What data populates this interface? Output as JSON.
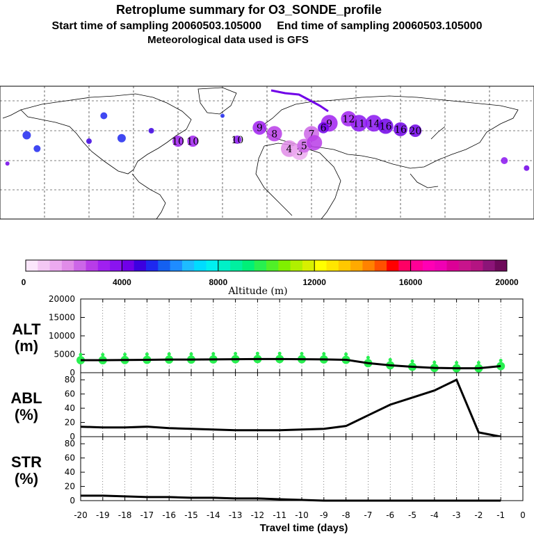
{
  "header": {
    "title": "Retroplume summary for O3_SONDE_profile",
    "sampling_line": "Start time of sampling 20060503.105000     End time of sampling 20060503.105000",
    "met_line": "Meteorological data used is GFS"
  },
  "colorbar": {
    "colors": [
      "#fbe6fb",
      "#f4c8f4",
      "#ecaaf0",
      "#e08ce8",
      "#cc66e8",
      "#b83ce8",
      "#a020f0",
      "#8a14f0",
      "#7000e8",
      "#3c00e0",
      "#1e28f0",
      "#1460f0",
      "#1e8cff",
      "#1ebcff",
      "#00dcff",
      "#00f0f0",
      "#00f0c8",
      "#00f0a0",
      "#00f078",
      "#28f050",
      "#50f028",
      "#80f000",
      "#b0f000",
      "#d8f000",
      "#ffff00",
      "#ffe600",
      "#ffc800",
      "#ffaa00",
      "#ff8200",
      "#ff5000",
      "#ff0000",
      "#ff0064",
      "#ff0096",
      "#ff00b4",
      "#f000b4",
      "#dc0096",
      "#c8148c",
      "#b41482",
      "#8c1478",
      "#6e0a5a"
    ],
    "labels": [
      "0",
      "4000",
      "8000",
      "12000",
      "16000",
      "20000"
    ],
    "axis_label": "Altitude (m)"
  },
  "map_plumes": [
    {
      "lon": 62,
      "lat": 55,
      "size": 12,
      "color": "#8a14f0",
      "label": "11"
    },
    {
      "lon": 72,
      "lat": 55,
      "size": 12,
      "color": "#8a14f0",
      "label": "14"
    },
    {
      "lon": 80,
      "lat": 53,
      "size": 11,
      "color": "#7000e8",
      "label": "16"
    },
    {
      "lon": 90,
      "lat": 51,
      "size": 10,
      "color": "#7000e8",
      "label": "16"
    },
    {
      "lon": 100,
      "lat": 50,
      "size": 9,
      "color": "#7000e8",
      "label": "20"
    },
    {
      "lon": 42,
      "lat": 55,
      "size": 12,
      "color": "#a020f0",
      "label": "9"
    },
    {
      "lon": 55,
      "lat": 58,
      "size": 11,
      "color": "#a020f0",
      "label": "12"
    },
    {
      "lon": 30,
      "lat": 48,
      "size": 11,
      "color": "#cc66e8",
      "label": "7"
    },
    {
      "lon": 5,
      "lat": 48,
      "size": 11,
      "color": "#b83ce8",
      "label": "8"
    },
    {
      "lon": -5,
      "lat": 52,
      "size": 10,
      "color": "#a020f0",
      "label": "9"
    },
    {
      "lon": 15,
      "lat": 38,
      "size": 12,
      "color": "#e08ce8",
      "label": "4"
    },
    {
      "lon": 22,
      "lat": 36,
      "size": 12,
      "color": "#ecaaf0",
      "label": "3"
    },
    {
      "lon": 25,
      "lat": 40,
      "size": 10,
      "color": "#cc66e8",
      "label": "5"
    },
    {
      "lon": 32,
      "lat": 42,
      "size": 11,
      "color": "#b83ce8",
      "label": ""
    },
    {
      "lon": 38,
      "lat": 52,
      "size": 8,
      "color": "#7000e8",
      "label": "6"
    },
    {
      "lon": -60,
      "lat": 43,
      "size": 8,
      "color": "#a020f0",
      "label": "10"
    },
    {
      "lon": -50,
      "lat": 43,
      "size": 8,
      "color": "#a020f0",
      "label": "10"
    },
    {
      "lon": -20,
      "lat": 44,
      "size": 6,
      "color": "#8a14f0",
      "label": "10"
    },
    {
      "lon": -162,
      "lat": 47,
      "size": 6,
      "color": "#1e28f0",
      "label": ""
    },
    {
      "lon": -155,
      "lat": 38,
      "size": 5,
      "color": "#1e28f0",
      "label": ""
    },
    {
      "lon": -110,
      "lat": 60,
      "size": 5,
      "color": "#1e28f0",
      "label": ""
    },
    {
      "lon": -98,
      "lat": 45,
      "size": 6,
      "color": "#1e28f0",
      "label": ""
    },
    {
      "lon": -120,
      "lat": 43,
      "size": 4,
      "color": "#3c00e0",
      "label": ""
    },
    {
      "lon": -78,
      "lat": 50,
      "size": 4,
      "color": "#3c00e0",
      "label": ""
    },
    {
      "lon": -175,
      "lat": 28,
      "size": 3,
      "color": "#7000e8",
      "label": ""
    },
    {
      "lon": 160,
      "lat": 30,
      "size": 5,
      "color": "#8a14f0",
      "label": ""
    },
    {
      "lon": 175,
      "lat": 25,
      "size": 4,
      "color": "#7000e8",
      "label": ""
    },
    {
      "lon": -30,
      "lat": 60,
      "size": 3,
      "color": "#1e28f0",
      "label": ""
    }
  ],
  "chart_data": [
    {
      "type": "line",
      "title": "ALT (m)",
      "panel_label_line1": "ALT",
      "panel_label_line2": "(m)",
      "x": [
        -20,
        -19,
        -18,
        -17,
        -16,
        -15,
        -14,
        -13,
        -12,
        -11,
        -10,
        -9,
        -8,
        -7,
        -6,
        -5,
        -4,
        -3,
        -2,
        -1
      ],
      "values": [
        3400,
        3400,
        3450,
        3500,
        3550,
        3550,
        3600,
        3650,
        3700,
        3700,
        3650,
        3600,
        3500,
        2600,
        2000,
        1600,
        1300,
        1200,
        1200,
        1800
      ],
      "scatter_color": "#28f050",
      "ylim": [
        0,
        20000
      ],
      "yticks": [
        "0",
        "5000",
        "10000",
        "15000",
        "20000"
      ]
    },
    {
      "type": "line",
      "title": "ABL (%)",
      "panel_label_line1": "ABL",
      "panel_label_line2": "(%)",
      "x": [
        -20,
        -19,
        -18,
        -17,
        -16,
        -15,
        -14,
        -13,
        -12,
        -11,
        -10,
        -9,
        -8,
        -7,
        -6,
        -5,
        -4,
        -3,
        -2,
        -1
      ],
      "values": [
        14,
        13,
        13,
        14,
        12,
        11,
        10,
        9,
        9,
        9,
        10,
        11,
        15,
        30,
        45,
        55,
        65,
        80,
        6,
        0
      ],
      "ylim": [
        0,
        90
      ],
      "yticks": [
        "0",
        "20",
        "40",
        "60",
        "80"
      ]
    },
    {
      "type": "line",
      "title": "STR (%)",
      "panel_label_line1": "STR",
      "panel_label_line2": "(%)",
      "x": [
        -20,
        -19,
        -18,
        -17,
        -16,
        -15,
        -14,
        -13,
        -12,
        -11,
        -10,
        -9,
        -8,
        -7,
        -6,
        -5,
        -4,
        -3,
        -2,
        -1
      ],
      "values": [
        7,
        7,
        6,
        5,
        5,
        4,
        4,
        3,
        3,
        2,
        1,
        0,
        0,
        0,
        0,
        0,
        0,
        0,
        0,
        0
      ],
      "ylim": [
        0,
        90
      ],
      "yticks": [
        "0",
        "20",
        "40",
        "60",
        "80"
      ]
    }
  ],
  "x_axis": {
    "ticks": [
      "-20",
      "-19",
      "-18",
      "-17",
      "-16",
      "-15",
      "-14",
      "-13",
      "-12",
      "-11",
      "-10",
      "-9",
      "-8",
      "-7",
      "-6",
      "-5",
      "-4",
      "-3",
      "-2",
      "-1",
      "0"
    ],
    "label": "Travel time (days)"
  }
}
